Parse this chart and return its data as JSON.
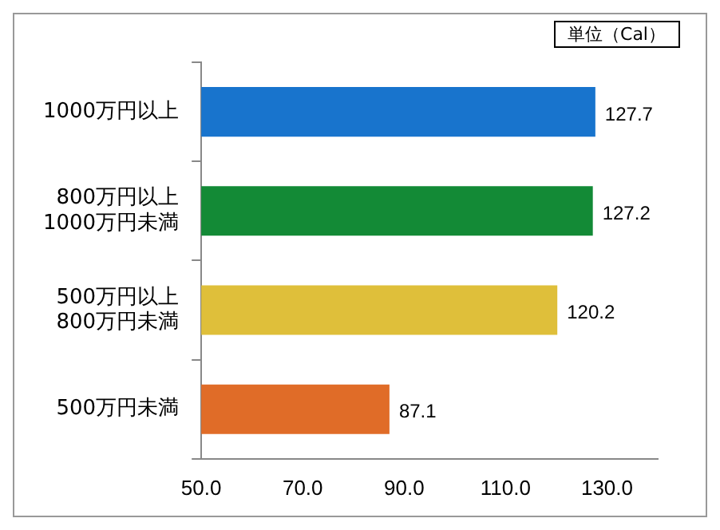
{
  "chart_data": {
    "type": "bar",
    "orientation": "horizontal",
    "categories": [
      "1000万円以上",
      "800万円以上\n1000万円未満",
      "500万円以上\n800万円未満",
      "500万円未満"
    ],
    "values": [
      127.7,
      127.2,
      120.2,
      87.1
    ],
    "colors": [
      "#1874cd",
      "#138a36",
      "#dfbf3a",
      "#e06c28"
    ],
    "xlim": [
      50,
      140
    ],
    "xticks": [
      {
        "value": 50,
        "label": "50.0"
      },
      {
        "value": 70,
        "label": "70.0"
      },
      {
        "value": 90,
        "label": "90.0"
      },
      {
        "value": 110,
        "label": "110.0"
      },
      {
        "value": 130,
        "label": "130.0"
      }
    ],
    "grid": false,
    "legend": false,
    "data_labels": true,
    "annotations": [
      "単位（Cal）"
    ]
  }
}
